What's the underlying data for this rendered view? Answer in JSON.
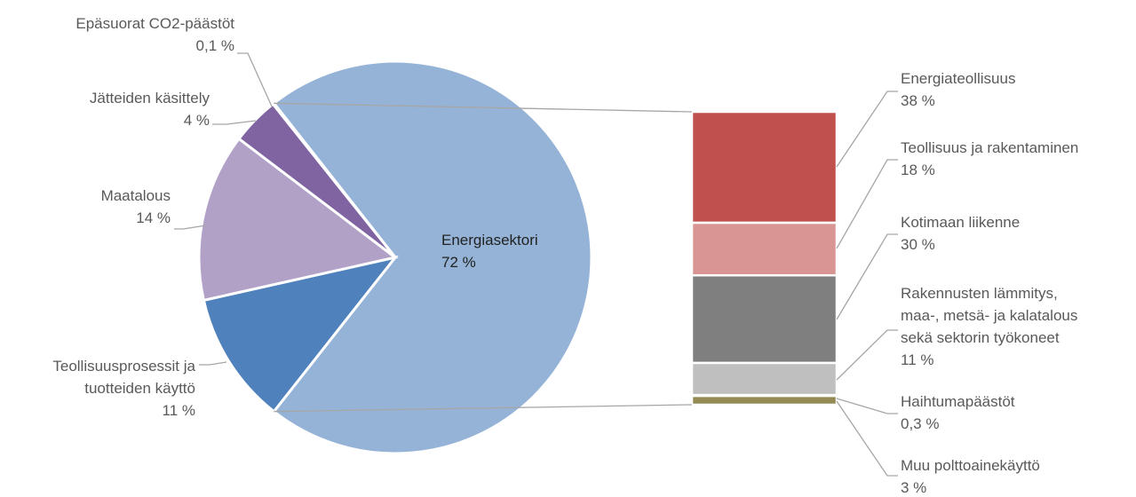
{
  "chart_data": {
    "type": "bar-of-pie",
    "pie": {
      "slices": [
        {
          "name": "Energiasektori",
          "value": 72,
          "label": "72 %",
          "color": "#95b3d7"
        },
        {
          "name": "Teollisuusprosessit ja tuotteiden käyttö",
          "name_lines": [
            "Teollisuusprosessit ja",
            "tuotteiden käyttö"
          ],
          "value": 11,
          "label": "11 %",
          "color": "#4f81bd"
        },
        {
          "name": "Maatalous",
          "value": 14,
          "label": "14 %",
          "color": "#b2a1c7"
        },
        {
          "name": "Jätteiden käsittely",
          "value": 4,
          "label": "4 %",
          "color": "#8064a2"
        },
        {
          "name": "Epäsuorat CO2-päästöt",
          "value": 0.1,
          "label": "0,1 %",
          "color": "#d9d2e3"
        }
      ]
    },
    "bar": {
      "parent": "Energiasektori",
      "segments": [
        {
          "name": "Energiateollisuus",
          "value": 38,
          "label": "38 %",
          "color": "#c0504d"
        },
        {
          "name": "Teollisuus ja rakentaminen",
          "value": 18,
          "label": "18 %",
          "color": "#d99594"
        },
        {
          "name": "Kotimaan liikenne",
          "value": 30,
          "label": "30 %",
          "color": "#7f7f7f"
        },
        {
          "name": "Rakennusten lämmitys, maa-, metsä- ja kalatalous sekä sektorin työkoneet",
          "name_lines": [
            "Rakennusten lämmitys,",
            "maa-, metsä- ja kalatalous",
            "sekä sektorin työkoneet"
          ],
          "value": 11,
          "label": "11 %",
          "color": "#bfbfbf"
        },
        {
          "name": "Haihtumapäästöt",
          "value": 0.3,
          "label": "0,3 %",
          "color": "#eeece1"
        },
        {
          "name": "Muu polttoainekäyttö",
          "value": 3,
          "label": "3 %",
          "color": "#948a54"
        }
      ]
    }
  }
}
